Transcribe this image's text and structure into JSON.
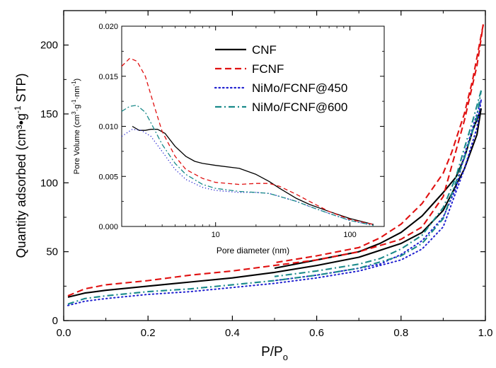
{
  "chart_data": [
    {
      "type": "line",
      "xlabel": "P/Po",
      "xlabel_main": "P/P",
      "xlabel_sub": "o",
      "ylabel": "Quantity adsorbed (cm³•g⁻¹ STP)",
      "ylabel_main": "Quantity adsorbed (cm³•g",
      "ylabel_sup": "-1",
      "ylabel_tail": " STP)",
      "xlim": [
        0.0,
        1.0
      ],
      "ylim": [
        0,
        225
      ],
      "xticks": [
        "0.0",
        "0.2",
        "0.4",
        "0.6",
        "0.8",
        "1.0"
      ],
      "yticks": [
        "0",
        "50",
        "100",
        "150",
        "200"
      ],
      "series": [
        {
          "name": "CNF",
          "color": "#000000",
          "dash": "solid",
          "adsorption": [
            [
              0.01,
              17
            ],
            [
              0.05,
              20
            ],
            [
              0.1,
              22
            ],
            [
              0.2,
              25
            ],
            [
              0.3,
              28
            ],
            [
              0.4,
              31
            ],
            [
              0.5,
              35
            ],
            [
              0.6,
              40
            ],
            [
              0.7,
              46
            ],
            [
              0.8,
              56
            ],
            [
              0.85,
              64
            ],
            [
              0.9,
              80
            ],
            [
              0.95,
              110
            ],
            [
              0.98,
              135
            ],
            [
              0.99,
              154
            ]
          ],
          "desorption": [
            [
              0.99,
              154
            ],
            [
              0.97,
              138
            ],
            [
              0.95,
              118
            ],
            [
              0.93,
              104
            ],
            [
              0.9,
              93
            ],
            [
              0.85,
              76
            ],
            [
              0.8,
              64
            ],
            [
              0.75,
              56
            ],
            [
              0.7,
              50
            ],
            [
              0.6,
              44
            ],
            [
              0.5,
              38
            ]
          ]
        },
        {
          "name": "FCNF",
          "color": "#e01010",
          "dash": "dashed",
          "adsorption": [
            [
              0.01,
              18
            ],
            [
              0.05,
              23
            ],
            [
              0.1,
              26
            ],
            [
              0.2,
              29
            ],
            [
              0.3,
              33
            ],
            [
              0.4,
              36
            ],
            [
              0.5,
              40
            ],
            [
              0.6,
              44
            ],
            [
              0.7,
              50
            ],
            [
              0.8,
              59
            ],
            [
              0.85,
              68
            ],
            [
              0.9,
              90
            ],
            [
              0.95,
              145
            ],
            [
              0.98,
              185
            ],
            [
              0.995,
              215
            ]
          ],
          "desorption": [
            [
              0.995,
              215
            ],
            [
              0.97,
              175
            ],
            [
              0.95,
              150
            ],
            [
              0.92,
              122
            ],
            [
              0.9,
              107
            ],
            [
              0.85,
              85
            ],
            [
              0.8,
              70
            ],
            [
              0.75,
              60
            ],
            [
              0.7,
              53
            ],
            [
              0.6,
              47
            ],
            [
              0.5,
              42
            ]
          ]
        },
        {
          "name": "NiMo/FCNF@450",
          "color": "#2020d0",
          "dash": "dotted",
          "adsorption": [
            [
              0.01,
              11
            ],
            [
              0.05,
              14
            ],
            [
              0.1,
              16
            ],
            [
              0.2,
              19
            ],
            [
              0.3,
              21
            ],
            [
              0.4,
              24
            ],
            [
              0.5,
              27
            ],
            [
              0.6,
              31
            ],
            [
              0.7,
              36
            ],
            [
              0.8,
              44
            ],
            [
              0.85,
              52
            ],
            [
              0.9,
              68
            ],
            [
              0.95,
              110
            ],
            [
              0.98,
              140
            ],
            [
              0.99,
              160
            ]
          ],
          "desorption": [
            [
              0.99,
              160
            ],
            [
              0.97,
              140
            ],
            [
              0.95,
              120
            ],
            [
              0.93,
              96
            ],
            [
              0.9,
              75
            ],
            [
              0.85,
              58
            ],
            [
              0.8,
              48
            ],
            [
              0.75,
              41
            ],
            [
              0.7,
              38
            ],
            [
              0.6,
              33
            ],
            [
              0.5,
              29
            ]
          ]
        },
        {
          "name": "NiMo/FCNF@600",
          "color": "#1a8a8a",
          "dash": "dashdot",
          "adsorption": [
            [
              0.01,
              12
            ],
            [
              0.05,
              16
            ],
            [
              0.1,
              18
            ],
            [
              0.2,
              21
            ],
            [
              0.3,
              23
            ],
            [
              0.4,
              26
            ],
            [
              0.5,
              29
            ],
            [
              0.6,
              33
            ],
            [
              0.7,
              38
            ],
            [
              0.8,
              47
            ],
            [
              0.85,
              56
            ],
            [
              0.9,
              74
            ],
            [
              0.95,
              118
            ],
            [
              0.98,
              148
            ],
            [
              0.99,
              167
            ]
          ],
          "desorption": [
            [
              0.99,
              167
            ],
            [
              0.97,
              145
            ],
            [
              0.95,
              125
            ],
            [
              0.93,
              104
            ],
            [
              0.9,
              82
            ],
            [
              0.85,
              62
            ],
            [
              0.8,
              52
            ],
            [
              0.75,
              45
            ],
            [
              0.7,
              41
            ],
            [
              0.6,
              36
            ],
            [
              0.5,
              32
            ]
          ]
        }
      ]
    },
    {
      "type": "line",
      "scale_x": "log",
      "xlabel": "Pore diameter (nm)",
      "ylabel": "Pore Volume (cm³·g⁻¹·nm⁻¹)",
      "ylabel_parts": [
        "Pore Volume (cm",
        "3",
        "·g",
        "-1",
        "·nm",
        "-1",
        ")"
      ],
      "xlim": [
        2.0,
        180
      ],
      "ylim": [
        0.0,
        0.02
      ],
      "xticks": [
        "10",
        "100"
      ],
      "yticks": [
        "0.000",
        "0.005",
        "0.010",
        "0.015",
        "0.020"
      ],
      "legend_position": "top-right",
      "series": [
        {
          "name": "CNF",
          "color": "#000000",
          "dash": "solid",
          "points": [
            [
              2.4,
              0.01
            ],
            [
              2.7,
              0.0096
            ],
            [
              3.0,
              0.0096
            ],
            [
              3.3,
              0.0097
            ],
            [
              3.7,
              0.0097
            ],
            [
              4.2,
              0.0093
            ],
            [
              5,
              0.008
            ],
            [
              6,
              0.007
            ],
            [
              7,
              0.0065
            ],
            [
              8,
              0.0063
            ],
            [
              10,
              0.0061
            ],
            [
              15,
              0.0058
            ],
            [
              20,
              0.0052
            ],
            [
              25,
              0.0045
            ],
            [
              30,
              0.0038
            ],
            [
              40,
              0.0028
            ],
            [
              50,
              0.0022
            ],
            [
              70,
              0.0015
            ],
            [
              100,
              0.0008
            ],
            [
              150,
              0.0002
            ]
          ]
        },
        {
          "name": "FCNF",
          "color": "#e01010",
          "dash": "dashed",
          "points": [
            [
              2.0,
              0.016
            ],
            [
              2.3,
              0.0168
            ],
            [
              2.6,
              0.0165
            ],
            [
              3.0,
              0.015
            ],
            [
              3.5,
              0.012
            ],
            [
              4,
              0.0095
            ],
            [
              5,
              0.007
            ],
            [
              6,
              0.0057
            ],
            [
              8,
              0.0048
            ],
            [
              10,
              0.0044
            ],
            [
              15,
              0.0042
            ],
            [
              20,
              0.0043
            ],
            [
              25,
              0.0043
            ],
            [
              30,
              0.004
            ],
            [
              40,
              0.0032
            ],
            [
              50,
              0.0025
            ],
            [
              70,
              0.0015
            ],
            [
              100,
              0.0007
            ],
            [
              150,
              0.0002
            ]
          ]
        },
        {
          "name": "NiMo/FCNF@450",
          "color": "#2020d0",
          "dash": "dotted",
          "points": [
            [
              2.0,
              0.009
            ],
            [
              2.4,
              0.0097
            ],
            [
              2.8,
              0.0096
            ],
            [
              3.3,
              0.009
            ],
            [
              4,
              0.0075
            ],
            [
              5,
              0.0057
            ],
            [
              6,
              0.0047
            ],
            [
              8,
              0.0039
            ],
            [
              10,
              0.0036
            ],
            [
              15,
              0.0034
            ],
            [
              20,
              0.0034
            ],
            [
              25,
              0.0033
            ],
            [
              30,
              0.003
            ],
            [
              40,
              0.0025
            ],
            [
              50,
              0.002
            ],
            [
              70,
              0.0013
            ],
            [
              100,
              0.0006
            ],
            [
              150,
              0.0001
            ]
          ]
        },
        {
          "name": "NiMo/FCNF@600",
          "color": "#1a8a8a",
          "dash": "dashdot",
          "points": [
            [
              2.0,
              0.0115
            ],
            [
              2.3,
              0.012
            ],
            [
              2.6,
              0.0121
            ],
            [
              3.0,
              0.0114
            ],
            [
              3.5,
              0.0097
            ],
            [
              4,
              0.0082
            ],
            [
              5,
              0.0063
            ],
            [
              6,
              0.0052
            ],
            [
              8,
              0.0042
            ],
            [
              10,
              0.0038
            ],
            [
              15,
              0.0035
            ],
            [
              20,
              0.0034
            ],
            [
              25,
              0.0033
            ],
            [
              30,
              0.003
            ],
            [
              40,
              0.0025
            ],
            [
              50,
              0.002
            ],
            [
              70,
              0.0013
            ],
            [
              100,
              0.0006
            ],
            [
              150,
              0.0001
            ]
          ]
        }
      ]
    }
  ]
}
